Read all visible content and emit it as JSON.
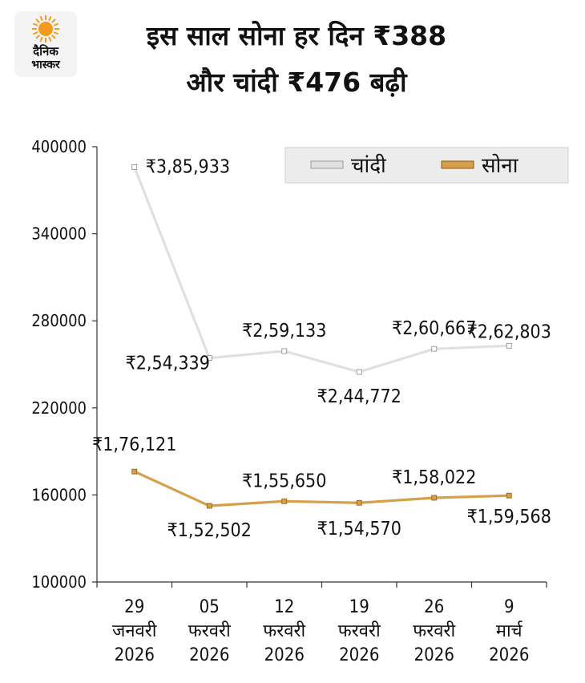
{
  "header": {
    "logo_line1": "दैनिक",
    "logo_line2": "भास्कर",
    "title_line1": "इस साल सोना हर दिन ₹388",
    "title_line2": "और चांदी ₹476 बढ़ी"
  },
  "colors": {
    "silver": "#e0e0e0",
    "gold": "#d6a04b",
    "axis": "#333333",
    "legend_bg": "#ececec",
    "logo_sun": "#f39a1e"
  },
  "chart_data": {
    "type": "line",
    "categories": [
      [
        "29",
        "जनवरी",
        "2026"
      ],
      [
        "05",
        "फरवरी",
        "2026"
      ],
      [
        "12",
        "फरवरी",
        "2026"
      ],
      [
        "19",
        "फरवरी",
        "2026"
      ],
      [
        "26",
        "फरवरी",
        "2026"
      ],
      [
        "9",
        "मार्च",
        "2026"
      ]
    ],
    "ylim": [
      100000,
      400000
    ],
    "yticks": [
      100000,
      160000,
      220000,
      280000,
      340000,
      400000
    ],
    "legend_position": "top-right",
    "grid": false,
    "series": [
      {
        "name": "चांदी",
        "color": "#e0e0e0",
        "values": [
          385933,
          254339,
          259133,
          244772,
          260667,
          262803
        ],
        "labels": [
          "₹3,85,933",
          "₹2,54,339",
          "₹2,59,133",
          "₹2,44,772",
          "₹2,60,667",
          "₹2,62,803"
        ]
      },
      {
        "name": "सोना",
        "color": "#d6a04b",
        "values": [
          176121,
          152502,
          155650,
          154570,
          158022,
          159568
        ],
        "labels": [
          "₹1,76,121",
          "₹1,52,502",
          "₹1,55,650",
          "₹1,54,570",
          "₹1,58,022",
          "₹1,59,568"
        ]
      }
    ]
  }
}
